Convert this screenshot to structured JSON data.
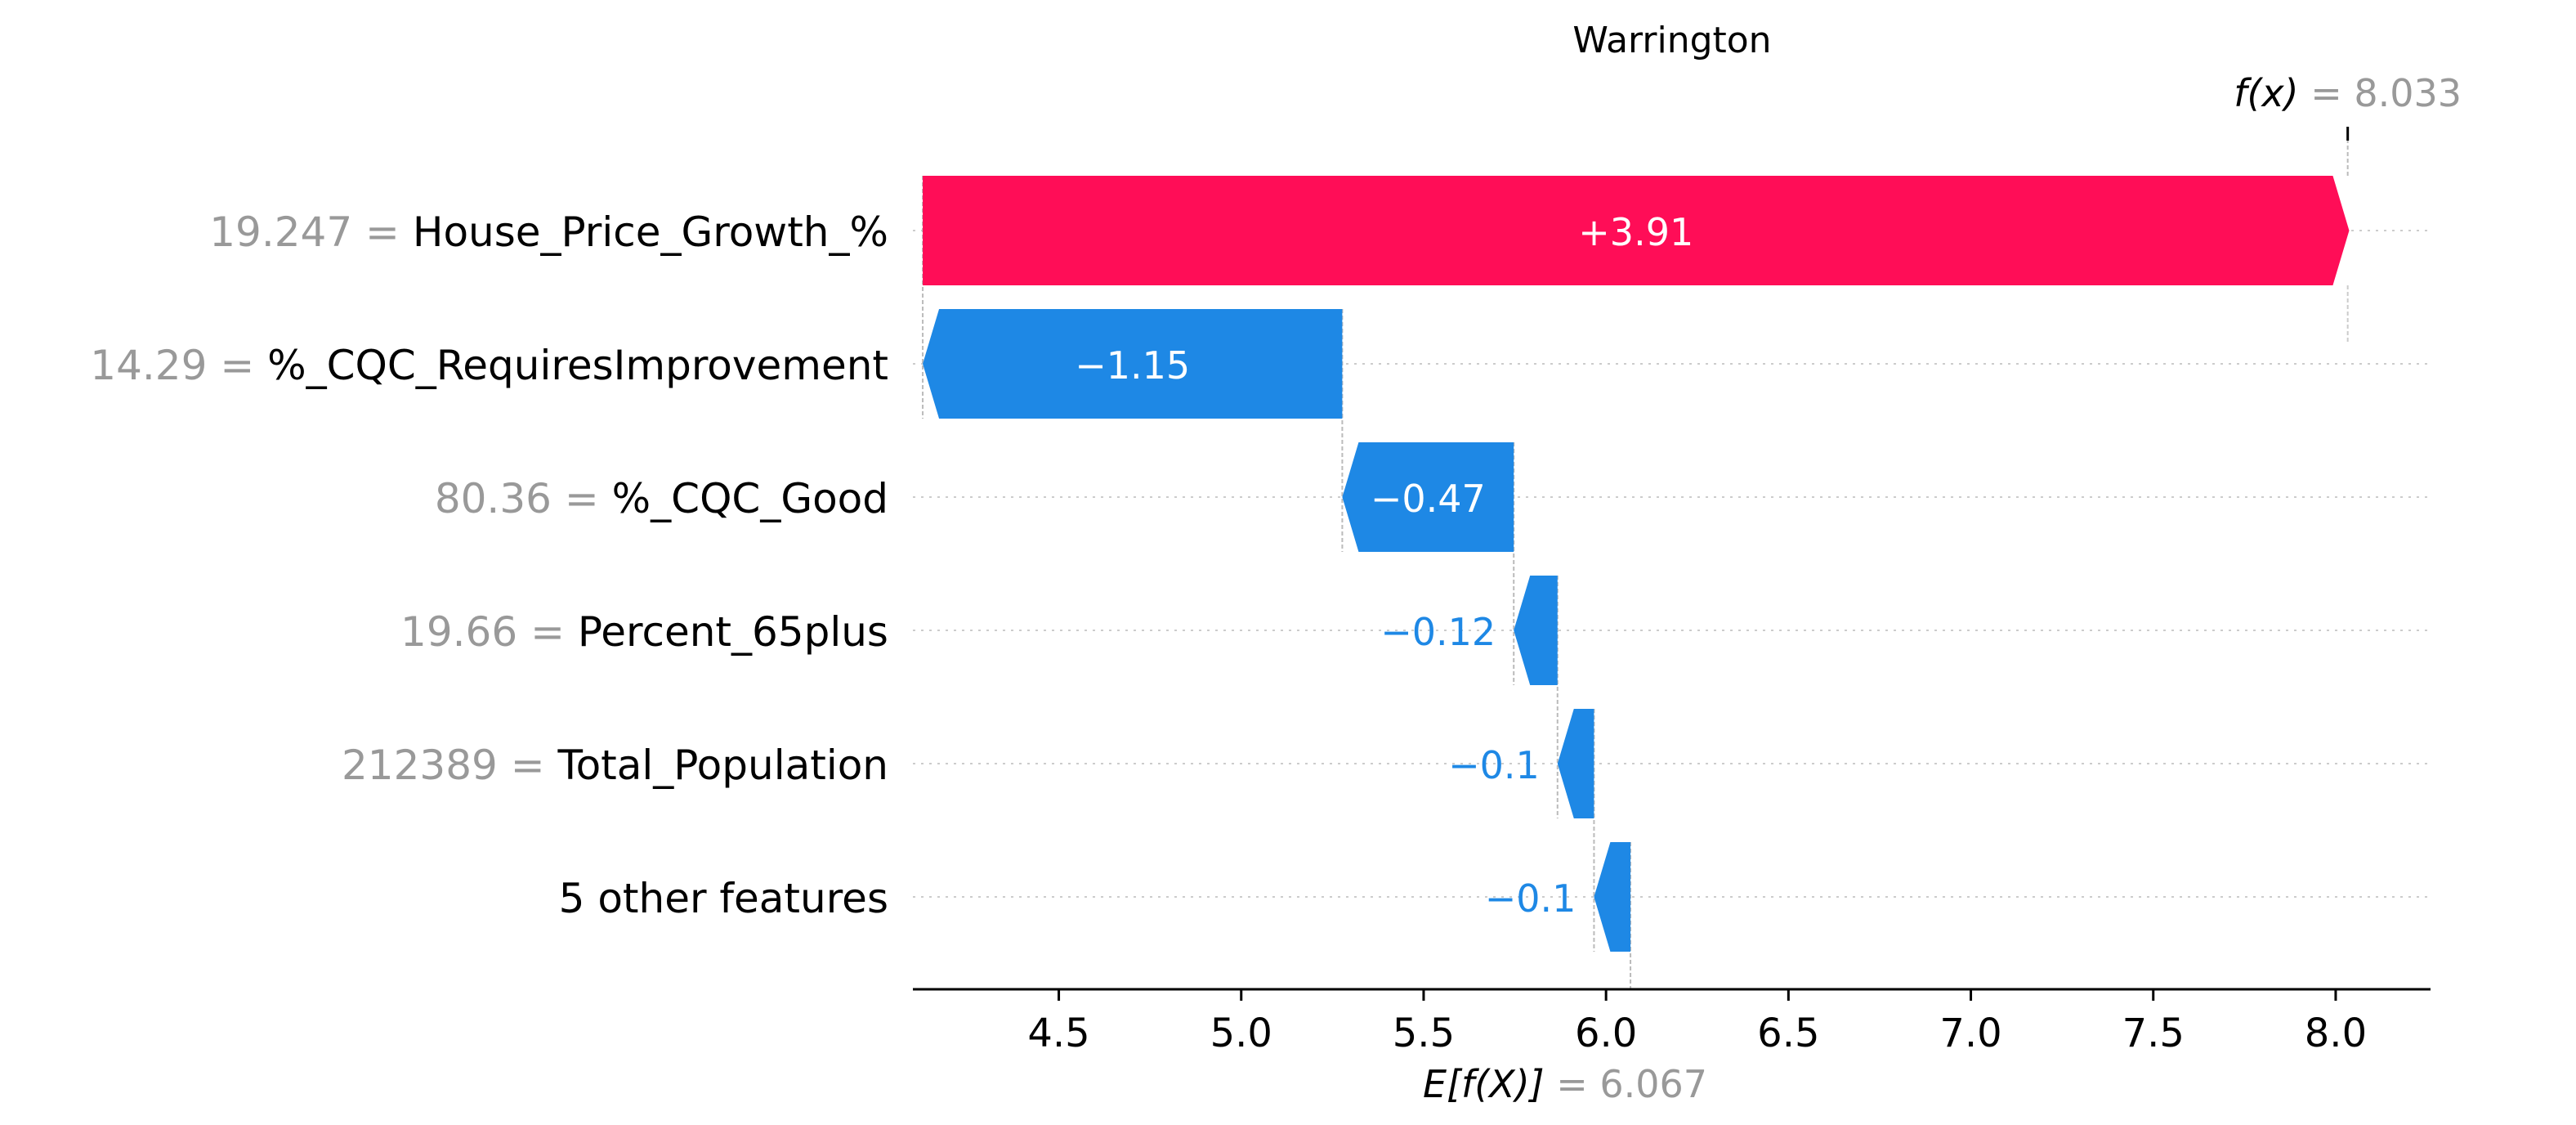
{
  "chart_data": {
    "type": "waterfall",
    "title": "Warrington",
    "base_value": 6.067,
    "base_value_text": "6.067",
    "output_value": 8.033,
    "output_value_text": "8.033",
    "fx_label": "f(x)",
    "ex_label": "E[f(X)]",
    "xlim": [
      4.1,
      8.26
    ],
    "xticks": [
      4.5,
      5.0,
      5.5,
      6.0,
      6.5,
      7.0,
      7.5,
      8.0
    ],
    "xtick_labels": [
      "4.5",
      "5.0",
      "5.5",
      "6.0",
      "6.5",
      "7.0",
      "7.5",
      "8.0"
    ],
    "grid": "dotted horizontal",
    "colors": {
      "positive": "#ff0d57",
      "negative": "#1e88e5",
      "neutral": "#999999"
    },
    "features": [
      {
        "value_text": "19.247",
        "name": "House_Price_Growth_%",
        "contribution": 3.91,
        "label": "+3.91"
      },
      {
        "value_text": "14.29",
        "name": "%_CQC_RequiresImprovement",
        "contribution": -1.15,
        "label": "−1.15"
      },
      {
        "value_text": "80.36",
        "name": "%_CQC_Good",
        "contribution": -0.47,
        "label": "−0.47"
      },
      {
        "value_text": "19.66",
        "name": "Percent_65plus",
        "contribution": -0.12,
        "label": "−0.12"
      },
      {
        "value_text": "212389",
        "name": "Total_Population",
        "contribution": -0.1,
        "label": "−0.1"
      },
      {
        "value_text": "",
        "name": "5 other features",
        "contribution": -0.1,
        "label": "−0.1"
      }
    ]
  }
}
